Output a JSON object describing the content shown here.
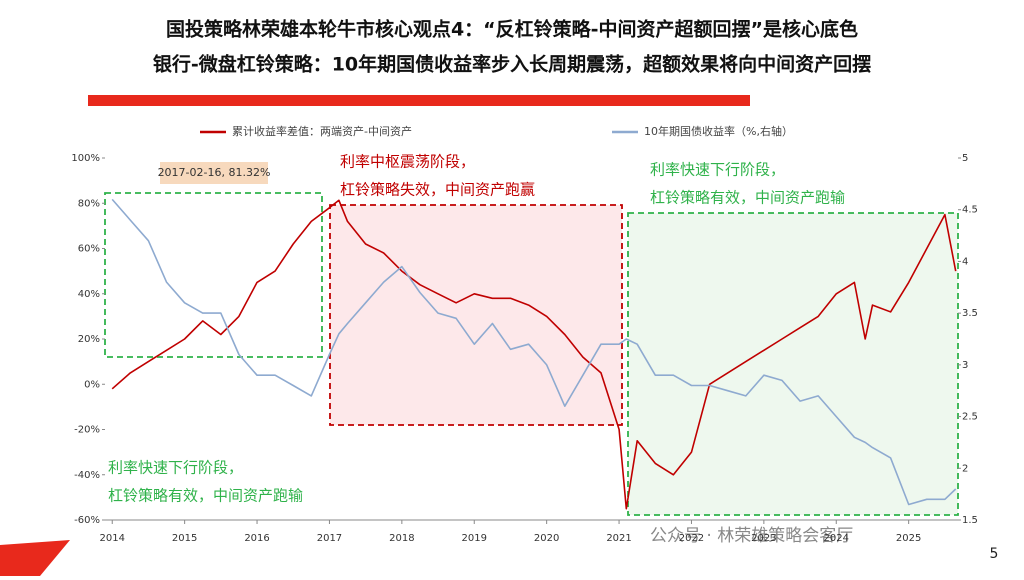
{
  "chart_data": {
    "type": "line",
    "title": "国投策略林荣雄本轮牛市核心观点4：“反杠铃策略-中间资产超额回摆”是核心底色",
    "subtitle": "银行-微盘杠铃策略：10年期国债收益率步入长周期震荡，超额效果将向中间资产回摆",
    "annotations": [
      "2017-02-16, 81.32%",
      "利率中枢震荡阶段，",
      "杠铃策略失效，中间资产跑赢",
      "利率快速下行阶段，",
      "杠铃策略有效，中间资产跑输",
      "利率快速下行阶段，",
      "杠铃策略有效，中间资产跑输"
    ],
    "watermark": "公众号 · 林荣雄策略会客厅",
    "page_number": "5",
    "x": [
      2014.0,
      2014.25,
      2014.5,
      2014.75,
      2015.0,
      2015.25,
      2015.5,
      2015.75,
      2016.0,
      2016.25,
      2016.5,
      2016.75,
      2017.0,
      2017.13,
      2017.25,
      2017.5,
      2017.75,
      2018.0,
      2018.25,
      2018.5,
      2018.75,
      2019.0,
      2019.25,
      2019.5,
      2019.75,
      2020.0,
      2020.25,
      2020.5,
      2020.75,
      2021.0,
      2021.1,
      2021.25,
      2021.5,
      2021.75,
      2022.0,
      2022.25,
      2022.5,
      2022.75,
      2023.0,
      2023.25,
      2023.5,
      2023.75,
      2024.0,
      2024.25,
      2024.4,
      2024.5,
      2024.75,
      2025.0,
      2025.25,
      2025.5,
      2025.65
    ],
    "xlim": [
      2013.9,
      2025.64
    ],
    "xticks": [
      2014,
      2015,
      2016,
      2017,
      2018,
      2019,
      2020,
      2021,
      2022,
      2023,
      2024,
      2025
    ],
    "ylim": [
      -60,
      100
    ],
    "yticks": [
      {
        "value": -60,
        "label": "-60%"
      },
      {
        "value": -40,
        "label": "-40%"
      },
      {
        "value": -20,
        "label": "-20%"
      },
      {
        "value": 0,
        "label": "0%"
      },
      {
        "value": 20,
        "label": "20%"
      },
      {
        "value": 40,
        "label": "40%"
      },
      {
        "value": 60,
        "label": "60%"
      },
      {
        "value": 80,
        "label": "80%"
      },
      {
        "value": 100,
        "label": "100%"
      }
    ],
    "y2lim": [
      1.5,
      5
    ],
    "y2ticks": [
      1.5,
      2,
      2.5,
      3,
      3.5,
      4,
      4.5,
      5
    ],
    "legend": "top",
    "series": [
      {
        "name": "累计收益率差值：两端资产-中间资产",
        "color": "#c00000",
        "values": [
          -2,
          5,
          10,
          15,
          20,
          28,
          22,
          30,
          45,
          50,
          62,
          72,
          78,
          81.32,
          72,
          62,
          58,
          50,
          44,
          40,
          36,
          40,
          38,
          38,
          35,
          30,
          22,
          12,
          5,
          -20,
          -55,
          -25,
          -35,
          -40,
          -30,
          0,
          5,
          10,
          15,
          20,
          25,
          30,
          40,
          45,
          20,
          35,
          32,
          45,
          60,
          75,
          50
        ]
      },
      {
        "name": "10年期国债收益率（%,右轴）",
        "color": "#8eaad0",
        "axis": "y2",
        "values": [
          4.6,
          4.4,
          4.2,
          3.8,
          3.6,
          3.5,
          3.5,
          3.1,
          2.9,
          2.9,
          2.8,
          2.7,
          3.1,
          3.3,
          3.4,
          3.6,
          3.8,
          3.95,
          3.7,
          3.5,
          3.45,
          3.2,
          3.4,
          3.15,
          3.2,
          3.0,
          2.6,
          2.9,
          3.2,
          3.2,
          3.25,
          3.2,
          2.9,
          2.9,
          2.8,
          2.8,
          2.75,
          2.7,
          2.9,
          2.85,
          2.65,
          2.7,
          2.5,
          2.3,
          2.25,
          2.2,
          2.1,
          1.65,
          1.7,
          1.7,
          1.8
        ]
      }
    ]
  }
}
